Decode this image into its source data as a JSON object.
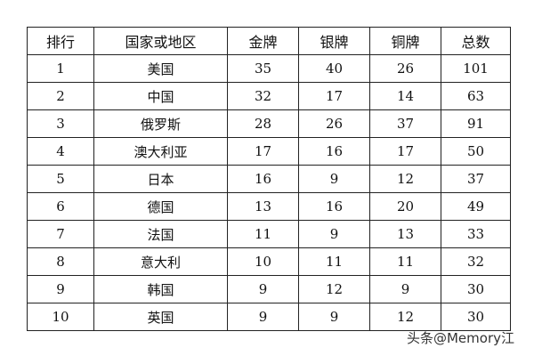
{
  "table": {
    "headers": [
      "排行",
      "国家或地区",
      "金牌",
      "银牌",
      "铜牌",
      "总数"
    ],
    "rows": [
      [
        "1",
        "美国",
        "35",
        "40",
        "26",
        "101"
      ],
      [
        "2",
        "中国",
        "32",
        "17",
        "14",
        "63"
      ],
      [
        "3",
        "俄罗斯",
        "28",
        "26",
        "37",
        "91"
      ],
      [
        "4",
        "澳大利亚",
        "17",
        "16",
        "17",
        "50"
      ],
      [
        "5",
        "日本",
        "16",
        "9",
        "12",
        "37"
      ],
      [
        "6",
        "德国",
        "13",
        "16",
        "20",
        "49"
      ],
      [
        "7",
        "法国",
        "11",
        "9",
        "13",
        "33"
      ],
      [
        "8",
        "意大利",
        "10",
        "11",
        "11",
        "32"
      ],
      [
        "9",
        "韩国",
        "9",
        "12",
        "9",
        "30"
      ],
      [
        "10",
        "英国",
        "9",
        "9",
        "12",
        "30"
      ]
    ]
  },
  "watermark": "头条@Memory江"
}
